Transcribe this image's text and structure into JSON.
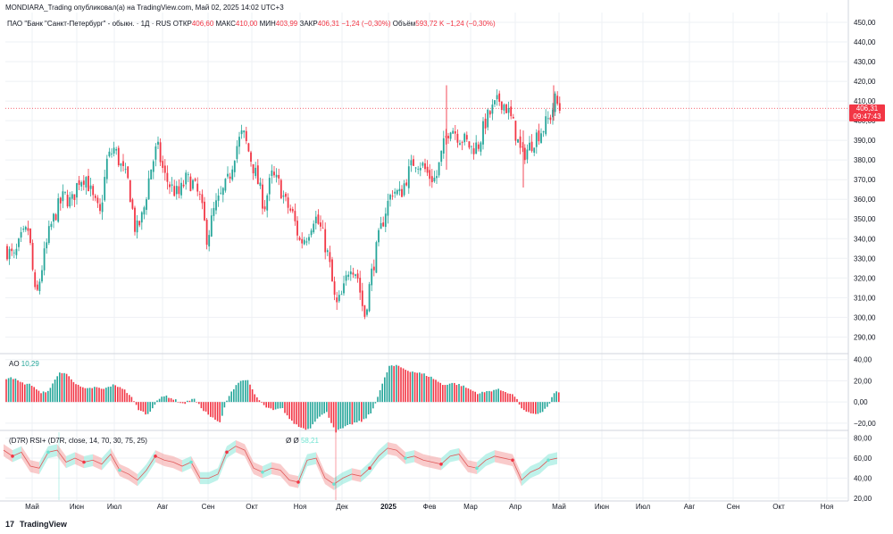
{
  "header": {
    "publisher_line": "MONDIARA_Trading опубликовал(а) на TradingView.com, Май 02, 2025 14:02 UTC+3"
  },
  "legend": {
    "symbol": "ПАО \"Банк \"Санкт-Петербург\" - обыкн. · 1Д · RUS",
    "open_label": "ОТКР",
    "open": "406,60",
    "high_label": "МАКС",
    "high": "410,00",
    "low_label": "МИН",
    "low": "403,99",
    "close_label": "ЗАКР",
    "close": "406,31",
    "change": "−1,24 (−0,30%)",
    "volume_label": "Объём",
    "volume": "593,72 K",
    "volume_change": "−1,24 (−0,30%)"
  },
  "price_tag": {
    "price": "406,31",
    "countdown": "09:47:43"
  },
  "ao_legend": {
    "name": "AO",
    "value": "10,29"
  },
  "rsi_legend": {
    "name": "(D7R) RSI+ (D7R, close, 14, 70, 30, 75, 25)",
    "extra_a": "Ø",
    "extra_b": "Ø",
    "value": "58,21"
  },
  "brand": {
    "logo": "17",
    "name": "TradingView"
  },
  "colors": {
    "up": "#26a69a",
    "down": "#f23645",
    "rsi_up": "#6fe3d1",
    "rsi_down": "#f28b8b",
    "grid": "#eef0f4"
  },
  "chart_data": [
    {
      "type": "candlestick",
      "title": "ПАО \"Банк \"Санкт-Петербург\" - обыкн. · 1Д · RUS",
      "ylim": [
        282,
        455
      ],
      "y_ticks": [
        "450,00",
        "440,00",
        "430,00",
        "420,00",
        "410,00",
        "400,00",
        "390,00",
        "380,00",
        "370,00",
        "360,00",
        "350,00",
        "340,00",
        "330,00",
        "320,00",
        "310,00",
        "300,00",
        "290,00"
      ],
      "y_tick_values": [
        450,
        440,
        430,
        420,
        410,
        400,
        390,
        380,
        370,
        360,
        350,
        340,
        330,
        320,
        310,
        300,
        290
      ],
      "x_labels": [
        "Май",
        "Июн",
        "Июл",
        "Авг",
        "Сен",
        "Окт",
        "Ноя",
        "Дек",
        "2025",
        "Фев",
        "Мар",
        "Апр",
        "Май",
        "Июн",
        "Июл",
        "Авг",
        "Сен",
        "Окт",
        "Ноя"
      ],
      "close_series": [
        [
          0,
          338
        ],
        [
          8,
          334
        ],
        [
          16,
          330
        ],
        [
          24,
          340
        ],
        [
          32,
          345
        ],
        [
          40,
          308
        ],
        [
          48,
          328
        ],
        [
          56,
          345
        ],
        [
          64,
          355
        ],
        [
          72,
          362
        ],
        [
          80,
          358
        ],
        [
          88,
          370
        ],
        [
          96,
          372
        ],
        [
          104,
          360
        ],
        [
          112,
          352
        ],
        [
          120,
          380
        ],
        [
          128,
          386
        ],
        [
          136,
          376
        ],
        [
          144,
          368
        ],
        [
          152,
          343
        ],
        [
          160,
          352
        ],
        [
          168,
          374
        ],
        [
          176,
          387
        ],
        [
          184,
          372
        ],
        [
          192,
          366
        ],
        [
          200,
          362
        ],
        [
          208,
          370
        ],
        [
          216,
          368
        ],
        [
          224,
          360
        ],
        [
          232,
          340
        ],
        [
          240,
          355
        ],
        [
          248,
          362
        ],
        [
          256,
          370
        ],
        [
          264,
          386
        ],
        [
          272,
          394
        ],
        [
          280,
          382
        ],
        [
          288,
          370
        ],
        [
          296,
          356
        ],
        [
          304,
          372
        ],
        [
          312,
          368
        ],
        [
          320,
          358
        ],
        [
          328,
          352
        ],
        [
          336,
          338
        ],
        [
          344,
          342
        ],
        [
          352,
          352
        ],
        [
          360,
          344
        ],
        [
          368,
          330
        ],
        [
          376,
          305
        ],
        [
          384,
          312
        ],
        [
          392,
          328
        ],
        [
          400,
          322
        ],
        [
          408,
          300
        ],
        [
          416,
          322
        ],
        [
          424,
          340
        ],
        [
          432,
          355
        ],
        [
          440,
          365
        ],
        [
          448,
          362
        ],
        [
          456,
          372
        ],
        [
          464,
          380
        ],
        [
          472,
          378
        ],
        [
          480,
          372
        ],
        [
          488,
          370
        ],
        [
          496,
          386
        ],
        [
          504,
          398
        ],
        [
          512,
          393
        ],
        [
          520,
          390
        ],
        [
          528,
          386
        ],
        [
          536,
          388
        ],
        [
          544,
          400
        ],
        [
          552,
          406
        ],
        [
          560,
          411
        ],
        [
          568,
          406
        ],
        [
          576,
          396
        ],
        [
          584,
          382
        ],
        [
          592,
          386
        ],
        [
          600,
          392
        ],
        [
          608,
          396
        ],
        [
          616,
          402
        ],
        [
          622,
          411
        ],
        [
          626,
          406
        ]
      ],
      "spikes": [
        [
          500,
          418,
          375
        ],
        [
          586,
          395,
          366
        ],
        [
          620,
          418,
          400
        ]
      ]
    },
    {
      "type": "bar",
      "title": "AO",
      "ylim": [
        -26,
        44
      ],
      "y_ticks": [
        "40,00",
        "20,00",
        "0,00",
        "−20,00"
      ],
      "y_tick_values": [
        40,
        20,
        0,
        -20
      ],
      "values": [
        [
          0,
          20
        ],
        [
          12,
          24
        ],
        [
          24,
          18
        ],
        [
          36,
          16
        ],
        [
          46,
          8
        ],
        [
          56,
          12
        ],
        [
          66,
          28
        ],
        [
          76,
          26
        ],
        [
          86,
          16
        ],
        [
          96,
          12
        ],
        [
          106,
          14
        ],
        [
          116,
          12
        ],
        [
          126,
          16
        ],
        [
          136,
          14
        ],
        [
          146,
          6
        ],
        [
          156,
          -8
        ],
        [
          166,
          -12
        ],
        [
          176,
          2
        ],
        [
          186,
          6
        ],
        [
          196,
          2
        ],
        [
          206,
          -2
        ],
        [
          216,
          4
        ],
        [
          226,
          -6
        ],
        [
          236,
          -14
        ],
        [
          246,
          -20
        ],
        [
          256,
          6
        ],
        [
          266,
          18
        ],
        [
          276,
          22
        ],
        [
          286,
          6
        ],
        [
          296,
          -4
        ],
        [
          306,
          -8
        ],
        [
          316,
          -6
        ],
        [
          326,
          -18
        ],
        [
          336,
          -24
        ],
        [
          346,
          -26
        ],
        [
          356,
          -14
        ],
        [
          366,
          -10
        ],
        [
          376,
          -28
        ],
        [
          386,
          -24
        ],
        [
          396,
          -20
        ],
        [
          406,
          -18
        ],
        [
          416,
          -10
        ],
        [
          426,
          12
        ],
        [
          436,
          34
        ],
        [
          446,
          34
        ],
        [
          456,
          30
        ],
        [
          466,
          28
        ],
        [
          476,
          26
        ],
        [
          486,
          22
        ],
        [
          496,
          16
        ],
        [
          506,
          18
        ],
        [
          516,
          16
        ],
        [
          526,
          12
        ],
        [
          536,
          8
        ],
        [
          546,
          10
        ],
        [
          556,
          12
        ],
        [
          566,
          10
        ],
        [
          576,
          6
        ],
        [
          586,
          -8
        ],
        [
          596,
          -12
        ],
        [
          606,
          -10
        ],
        [
          614,
          -4
        ],
        [
          620,
          8
        ],
        [
          626,
          10
        ]
      ]
    },
    {
      "type": "line",
      "title": "(D7R) RSI+ (D7R, close, 14, 70, 30, 75, 25)",
      "ylim": [
        18,
        86
      ],
      "y_ticks": [
        "80,00",
        "60,00",
        "40,00",
        "20,00"
      ],
      "y_tick_values": [
        80,
        60,
        40,
        20
      ],
      "values": [
        [
          4,
          68
        ],
        [
          14,
          62
        ],
        [
          24,
          66
        ],
        [
          34,
          52
        ],
        [
          44,
          50
        ],
        [
          54,
          66
        ],
        [
          64,
          68
        ],
        [
          74,
          56
        ],
        [
          84,
          60
        ],
        [
          94,
          56
        ],
        [
          104,
          58
        ],
        [
          114,
          54
        ],
        [
          124,
          64
        ],
        [
          134,
          48
        ],
        [
          144,
          44
        ],
        [
          154,
          38
        ],
        [
          164,
          48
        ],
        [
          174,
          62
        ],
        [
          184,
          58
        ],
        [
          194,
          56
        ],
        [
          204,
          52
        ],
        [
          214,
          56
        ],
        [
          224,
          40
        ],
        [
          234,
          40
        ],
        [
          244,
          44
        ],
        [
          254,
          66
        ],
        [
          264,
          72
        ],
        [
          274,
          68
        ],
        [
          284,
          50
        ],
        [
          294,
          46
        ],
        [
          304,
          50
        ],
        [
          314,
          48
        ],
        [
          324,
          38
        ],
        [
          334,
          36
        ],
        [
          344,
          58
        ],
        [
          354,
          60
        ],
        [
          364,
          40
        ],
        [
          374,
          34
        ],
        [
          384,
          40
        ],
        [
          394,
          44
        ],
        [
          404,
          42
        ],
        [
          414,
          50
        ],
        [
          424,
          62
        ],
        [
          434,
          70
        ],
        [
          444,
          68
        ],
        [
          454,
          60
        ],
        [
          464,
          62
        ],
        [
          474,
          58
        ],
        [
          484,
          56
        ],
        [
          494,
          54
        ],
        [
          504,
          62
        ],
        [
          514,
          64
        ],
        [
          524,
          52
        ],
        [
          534,
          50
        ],
        [
          544,
          58
        ],
        [
          554,
          62
        ],
        [
          564,
          60
        ],
        [
          574,
          58
        ],
        [
          584,
          38
        ],
        [
          594,
          46
        ],
        [
          604,
          50
        ],
        [
          614,
          58
        ],
        [
          624,
          60
        ]
      ]
    }
  ]
}
